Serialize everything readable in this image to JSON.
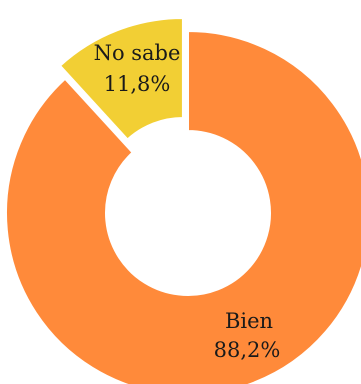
{
  "chart_data": {
    "type": "pie",
    "variant": "donut",
    "title": "",
    "slices": [
      {
        "label": "Bien",
        "value": 88.2,
        "value_text": "88,2%",
        "color": "#FF8A3A",
        "exploded": false
      },
      {
        "label": "No sabe",
        "value": 11.8,
        "value_text": "11,8%",
        "color": "#F2CF34",
        "exploded": true
      }
    ]
  }
}
